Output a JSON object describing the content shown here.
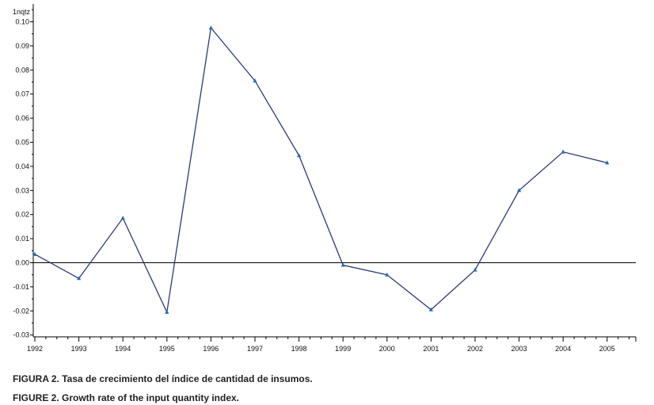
{
  "chart_data": {
    "type": "line",
    "title": "",
    "ylabel": "1nqtz",
    "xlabel": "",
    "x": [
      "1992",
      "1993",
      "1994",
      "1995",
      "1996",
      "1997",
      "1998",
      "1999",
      "2000",
      "2001",
      "2002",
      "2003",
      "2004",
      "2005"
    ],
    "series": [
      {
        "values": [
          0.0035,
          -0.0065,
          0.0185,
          -0.0205,
          0.0975,
          0.0755,
          0.0445,
          -0.001,
          -0.005,
          -0.0195,
          -0.003,
          0.03,
          0.046,
          0.0415
        ]
      }
    ],
    "ylim": [
      -0.03,
      0.105
    ],
    "yticks": [
      "0.10",
      "0.09",
      "0.08",
      "0.07",
      "0.06",
      "0.05",
      "0.04",
      "0.03",
      "0.02",
      "0.01",
      "0.00",
      "-0.01",
      "-0.02",
      "-0.03"
    ],
    "ytick_values": [
      0.1,
      0.09,
      0.08,
      0.07,
      0.06,
      0.05,
      0.04,
      0.03,
      0.02,
      0.01,
      0.0,
      -0.01,
      -0.02,
      -0.03
    ],
    "zero_line": true,
    "grid": false,
    "legend": "none",
    "colors": {
      "line": "#2b3a7a",
      "marker": "#1f6fb0",
      "axis": "#000000"
    }
  },
  "captions": {
    "spanish": "FIGURA 2. Tasa de crecimiento del índice de cantidad de insumos.",
    "english": "FIGURE 2. Growth rate of the input quantity index."
  }
}
